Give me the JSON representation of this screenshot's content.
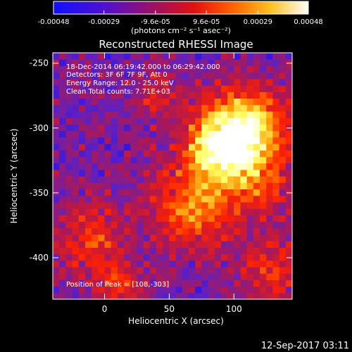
{
  "chart_data": {
    "type": "heatmap",
    "title": "Reconstructed RHESSI Image",
    "xlabel": "Heliocentric X (arcsec)",
    "ylabel": "Heliocentric Y (arcsec)",
    "xlim": [
      -40,
      145
    ],
    "ylim": [
      -432,
      -242
    ],
    "x_ticks": [
      0,
      50,
      100
    ],
    "y_ticks": [
      -250,
      -300,
      -350,
      -400
    ],
    "colorbar": {
      "ticks": [
        "-0.00048",
        "-0.00029",
        "-9.6e-05",
        "9.6e-05",
        "0.00029",
        "0.00048"
      ],
      "tick_values": [
        -0.00048,
        -0.00029,
        -9.6e-05,
        9.6e-05,
        0.00029,
        0.00048
      ],
      "range": [
        -0.00048,
        0.00048
      ],
      "units": "(photons cm⁻² s⁻¹ asec⁻²)",
      "colors": [
        "#1010ff",
        "#6020c0",
        "#b01850",
        "#ff2000",
        "#ff9000",
        "#ffff60",
        "#ffffff"
      ]
    },
    "annotations": {
      "time_range": "18-Dec-2014 06:19:42.000 to 06:29:42.000",
      "detectors": "Detectors: 3F 6F 7F 9F, Att 0",
      "energy": "Energy Range: 12.0 - 25.0 keV",
      "clean": "Clean     Total counts: 7.71E+03",
      "peak": "Position of Peak = [108,-303]"
    },
    "peak": {
      "x": 108,
      "y": -303
    }
  },
  "footer": {
    "timestamp": "12-Sep-2017 03:11"
  }
}
